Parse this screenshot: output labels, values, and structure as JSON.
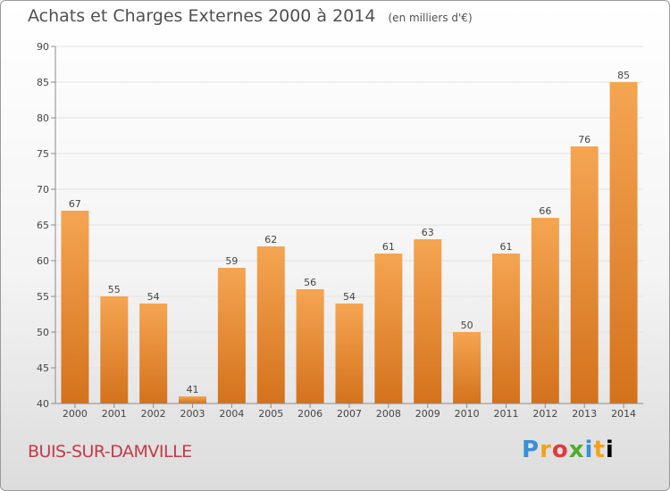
{
  "title": "Achats et Charges Externes 2000 à 2014",
  "unit": "(en milliers d'€)",
  "commune": "BUIS-SUR-DAMVILLE",
  "logo": {
    "text": "Proxiti",
    "letters": [
      "P",
      "r",
      "o",
      "x",
      "i",
      "t",
      "i"
    ]
  },
  "colors": {
    "bar_light": "#f5a552",
    "bar_dark": "#d4721c",
    "axis": "#8a8a8a",
    "grid": "#e2e2e2",
    "text": "#444444",
    "commune": "#c43a49"
  },
  "chart_data": {
    "type": "bar",
    "title": "Achats et Charges Externes 2000 à 2014",
    "subtitle": "(en milliers d'€)",
    "categories": [
      "2000",
      "2001",
      "2002",
      "2003",
      "2004",
      "2005",
      "2006",
      "2007",
      "2008",
      "2009",
      "2010",
      "2011",
      "2012",
      "2013",
      "2014"
    ],
    "values": [
      67,
      55,
      54,
      41,
      59,
      62,
      56,
      54,
      61,
      63,
      50,
      61,
      66,
      76,
      85
    ],
    "ylim": [
      40,
      90
    ],
    "yticks": [
      40,
      45,
      50,
      55,
      60,
      65,
      70,
      75,
      80,
      85,
      90
    ],
    "xlabel": "",
    "ylabel": "",
    "grid": true
  }
}
